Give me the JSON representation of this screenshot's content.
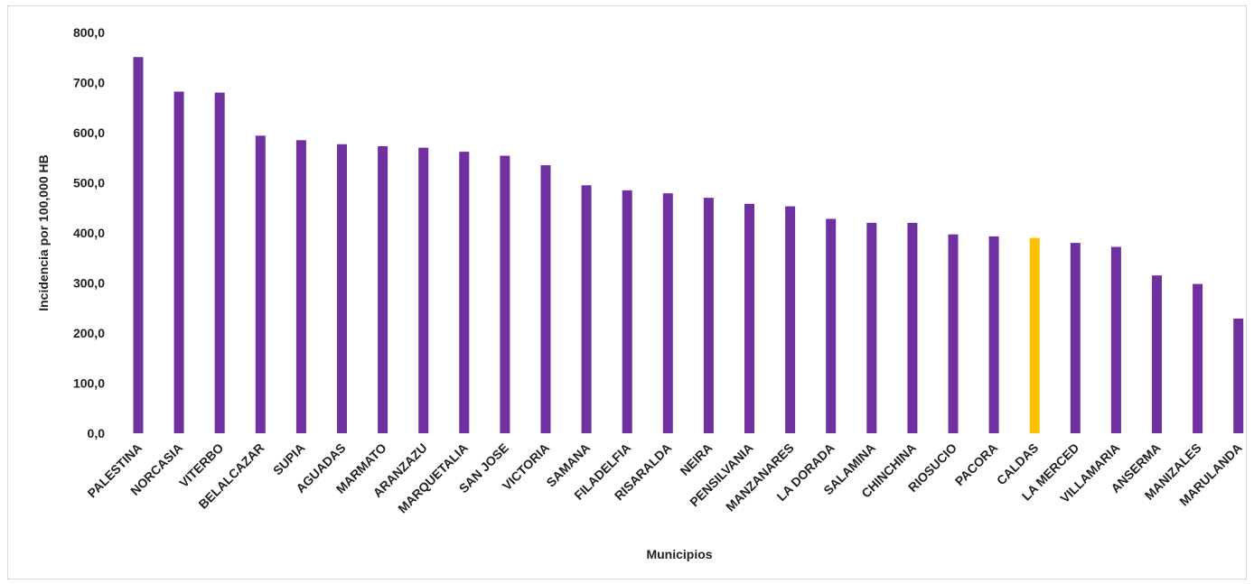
{
  "chart_data": {
    "type": "bar",
    "title": "",
    "xlabel": "Municipios",
    "ylabel": "Incidencia por 100,000 HB",
    "ylim": [
      0,
      800
    ],
    "ytick_step": 100,
    "ytick_labels": [
      "0,0",
      "100,0",
      "200,0",
      "300,0",
      "400,0",
      "500,0",
      "600,0",
      "700,0",
      "800,0"
    ],
    "grid": false,
    "legend": "none",
    "colors": {
      "default": "#7030A0",
      "highlight": "#FFC000"
    },
    "highlight_category": "CALDAS",
    "categories": [
      "PALESTINA",
      "NORCASIA",
      "VITERBO",
      "BELALCAZAR",
      "SUPIA",
      "AGUADAS",
      "MARMATO",
      "ARANZAZU",
      "MARQUETALIA",
      "SAN JOSE",
      "VICTORIA",
      "SAMANA",
      "FILADELFIA",
      "RISARALDA",
      "NEIRA",
      "PENSILVANIA",
      "MANZANARES",
      "LA DORADA",
      "SALAMINA",
      "CHINCHINA",
      "RIOSUCIO",
      "PACORA",
      "CALDAS",
      "LA MERCED",
      "VILLAMARIA",
      "ANSERMA",
      "MANIZALES",
      "MARULANDA"
    ],
    "values": [
      751,
      682,
      680,
      594,
      585,
      577,
      573,
      570,
      562,
      554,
      535,
      495,
      485,
      479,
      470,
      458,
      453,
      428,
      420,
      420,
      397,
      393,
      390,
      380,
      372,
      315,
      298,
      229
    ]
  }
}
